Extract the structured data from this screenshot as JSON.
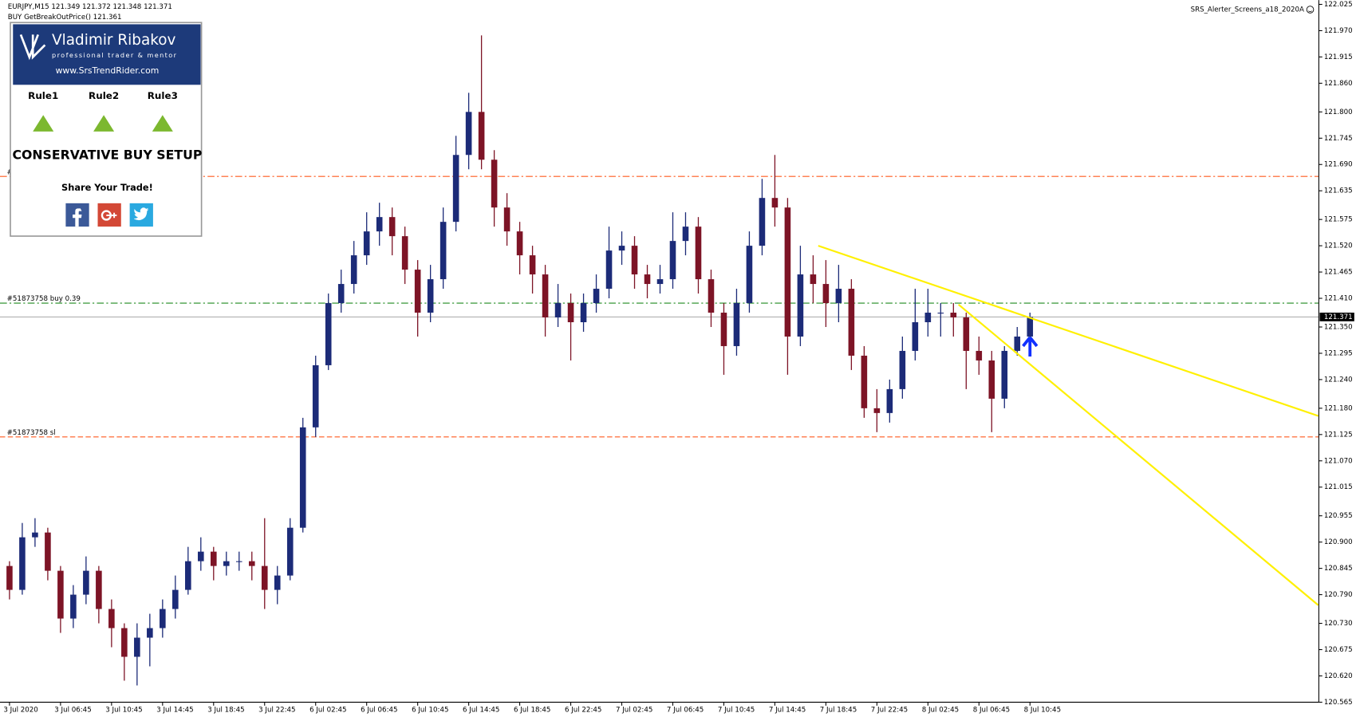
{
  "chart_data": {
    "type": "candlestick",
    "symbol_line": "EURJPY,M15  121.349 121.372 121.348 121.371",
    "indicator_line": "BUY GetBreakOutPrice() 121.361",
    "expert": "SRS_Alerter_Screens_a18_2020A",
    "categories": [
      "3 Jul 2020",
      null,
      null,
      null,
      "3 Jul 06:45",
      null,
      null,
      null,
      "3 Jul 10:45",
      null,
      null,
      null,
      "3 Jul 14:45",
      null,
      null,
      null,
      "3 Jul 18:45",
      null,
      null,
      null,
      "3 Jul 22:45",
      null,
      null,
      null,
      "6 Jul 02:45",
      null,
      null,
      null,
      "6 Jul 06:45",
      null,
      null,
      null,
      "6 Jul 10:45",
      null,
      null,
      null,
      "6 Jul 14:45",
      null,
      null,
      null,
      "6 Jul 18:45",
      null,
      null,
      null,
      "6 Jul 22:45",
      null,
      null,
      null,
      "7 Jul 02:45",
      null,
      null,
      null,
      "7 Jul 06:45",
      null,
      null,
      null,
      "7 Jul 10:45",
      null,
      null,
      null,
      "7 Jul 14:45",
      null,
      null,
      null,
      "7 Jul 18:45",
      null,
      null,
      null,
      "7 Jul 22:45",
      null,
      null,
      null,
      "8 Jul 02:45",
      null,
      null,
      null,
      "8 Jul 06:45",
      null,
      null,
      null,
      "8 Jul 10:45"
    ],
    "open": [
      120.85,
      120.8,
      120.91,
      120.92,
      120.84,
      120.74,
      120.79,
      120.84,
      120.76,
      120.72,
      120.66,
      120.7,
      120.72,
      120.76,
      120.8,
      120.86,
      120.88,
      120.85,
      120.86,
      120.86,
      120.85,
      120.8,
      120.83,
      120.93,
      121.14,
      121.27,
      121.4,
      121.44,
      121.5,
      121.55,
      121.58,
      121.54,
      121.47,
      121.38,
      121.45,
      121.57,
      121.71,
      121.8,
      121.7,
      121.6,
      121.55,
      121.5,
      121.46,
      121.37,
      121.4,
      121.36,
      121.4,
      121.43,
      121.51,
      121.52,
      121.46,
      121.44,
      121.45,
      121.53,
      121.56,
      121.45,
      121.38,
      121.31,
      121.4,
      121.52,
      121.62,
      121.6,
      121.33,
      121.46,
      121.44,
      121.4,
      121.43,
      121.29,
      121.18,
      121.17,
      121.22,
      121.3,
      121.36,
      121.38,
      121.38,
      121.37,
      121.3,
      121.28,
      121.2,
      121.3,
      121.33
    ],
    "high": [
      120.86,
      120.94,
      120.95,
      120.93,
      120.85,
      120.81,
      120.87,
      120.85,
      120.78,
      120.73,
      120.73,
      120.75,
      120.78,
      120.83,
      120.89,
      120.91,
      120.89,
      120.88,
      120.88,
      120.88,
      120.95,
      120.85,
      120.95,
      121.16,
      121.29,
      121.42,
      121.47,
      121.53,
      121.59,
      121.61,
      121.6,
      121.56,
      121.49,
      121.48,
      121.6,
      121.75,
      121.84,
      121.96,
      121.72,
      121.63,
      121.57,
      121.52,
      121.48,
      121.44,
      121.42,
      121.42,
      121.46,
      121.56,
      121.55,
      121.54,
      121.48,
      121.48,
      121.59,
      121.59,
      121.58,
      121.47,
      121.4,
      121.43,
      121.55,
      121.66,
      121.71,
      121.62,
      121.52,
      121.5,
      121.49,
      121.48,
      121.45,
      121.31,
      121.22,
      121.24,
      121.33,
      121.43,
      121.43,
      121.4,
      121.4,
      121.38,
      121.33,
      121.3,
      121.31,
      121.35,
      121.38
    ],
    "low": [
      120.78,
      120.79,
      120.89,
      120.82,
      120.71,
      120.72,
      120.77,
      120.73,
      120.68,
      120.61,
      120.6,
      120.64,
      120.7,
      120.74,
      120.79,
      120.84,
      120.82,
      120.83,
      120.84,
      120.82,
      120.76,
      120.77,
      120.82,
      120.92,
      121.12,
      121.26,
      121.38,
      121.42,
      121.48,
      121.52,
      121.5,
      121.44,
      121.33,
      121.36,
      121.43,
      121.55,
      121.68,
      121.68,
      121.56,
      121.52,
      121.46,
      121.42,
      121.33,
      121.35,
      121.28,
      121.34,
      121.38,
      121.41,
      121.48,
      121.43,
      121.41,
      121.42,
      121.43,
      121.5,
      121.42,
      121.35,
      121.25,
      121.29,
      121.38,
      121.5,
      121.56,
      121.25,
      121.31,
      121.4,
      121.35,
      121.36,
      121.26,
      121.16,
      121.13,
      121.15,
      121.2,
      121.28,
      121.33,
      121.33,
      121.33,
      121.22,
      121.25,
      121.13,
      121.18,
      121.29,
      121.31
    ],
    "close": [
      120.8,
      120.91,
      120.92,
      120.84,
      120.74,
      120.79,
      120.84,
      120.76,
      120.72,
      120.66,
      120.7,
      120.72,
      120.76,
      120.8,
      120.86,
      120.88,
      120.85,
      120.86,
      120.86,
      120.85,
      120.8,
      120.83,
      120.93,
      121.14,
      121.27,
      121.4,
      121.44,
      121.5,
      121.55,
      121.58,
      121.54,
      121.47,
      121.38,
      121.45,
      121.57,
      121.71,
      121.8,
      121.7,
      121.6,
      121.55,
      121.5,
      121.46,
      121.37,
      121.4,
      121.36,
      121.4,
      121.43,
      121.51,
      121.52,
      121.46,
      121.44,
      121.45,
      121.53,
      121.56,
      121.45,
      121.38,
      121.31,
      121.4,
      121.52,
      121.62,
      121.6,
      121.33,
      121.46,
      121.44,
      121.4,
      121.43,
      121.29,
      121.18,
      121.17,
      121.22,
      121.3,
      121.36,
      121.38,
      121.38,
      121.37,
      121.3,
      121.28,
      121.2,
      121.3,
      121.33,
      121.371
    ],
    "bull_color": "#1c2b78",
    "bear_color": "#7d1426",
    "ylim": [
      120.565,
      122.025
    ],
    "yticks": [
      122.025,
      {
        "value": 121.97,
        "label": "121.970"
      },
      121.915,
      {
        "value": 121.86,
        "label": "121.860"
      },
      {
        "value": 121.8,
        "label": "121.800"
      },
      121.745,
      {
        "value": 121.69,
        "label": "121.690"
      },
      121.635,
      121.575,
      {
        "value": 121.52,
        "label": "121.520"
      },
      121.465,
      {
        "value": 121.41,
        "label": "121.410"
      },
      {
        "value": 121.35,
        "label": "121.350"
      },
      121.295,
      {
        "value": 121.24,
        "label": "121.240"
      },
      {
        "value": 121.18,
        "label": "121.180"
      },
      121.125,
      {
        "value": 121.07,
        "label": "121.070"
      },
      121.015,
      120.955,
      {
        "value": 120.9,
        "label": "120.900"
      },
      120.845,
      {
        "value": 120.79,
        "label": "120.790"
      },
      {
        "value": 120.73,
        "label": "120.730"
      },
      120.675,
      {
        "value": 120.62,
        "label": "120.620"
      },
      120.565
    ],
    "current_price": 121.371,
    "levels": [
      {
        "price": 121.665,
        "label": "#",
        "color": "#ff5a1f",
        "dash": "8 3 2 3"
      },
      {
        "price": 121.4,
        "label": "#51873758 buy 0.39",
        "color": "#1f8a1f",
        "dash": "8 3 2 3"
      },
      {
        "price": 121.12,
        "label": "#51873758 sl",
        "color": "#ff5a1f",
        "dash": "6 3"
      }
    ],
    "trendlines": [
      {
        "from": [
          63.4,
          121.52
        ],
        "to": [
          102.6,
          121.164
        ],
        "color": "#fff000"
      },
      {
        "from": [
          74.4,
          121.397
        ],
        "to": [
          102.6,
          120.768
        ],
        "color": "#fff000"
      }
    ],
    "buy_arrow": {
      "index": 80,
      "price": 121.31,
      "color": "#1030ff"
    }
  },
  "panel": {
    "name": "Vladimir Ribakov",
    "tagline": "professional trader & mentor",
    "website": "www.SrsTrendRider.com",
    "rules": [
      "Rule1",
      "Rule2",
      "Rule3"
    ],
    "setup": "CONSERVATIVE BUY SETUP",
    "share": "Share Your Trade!"
  }
}
